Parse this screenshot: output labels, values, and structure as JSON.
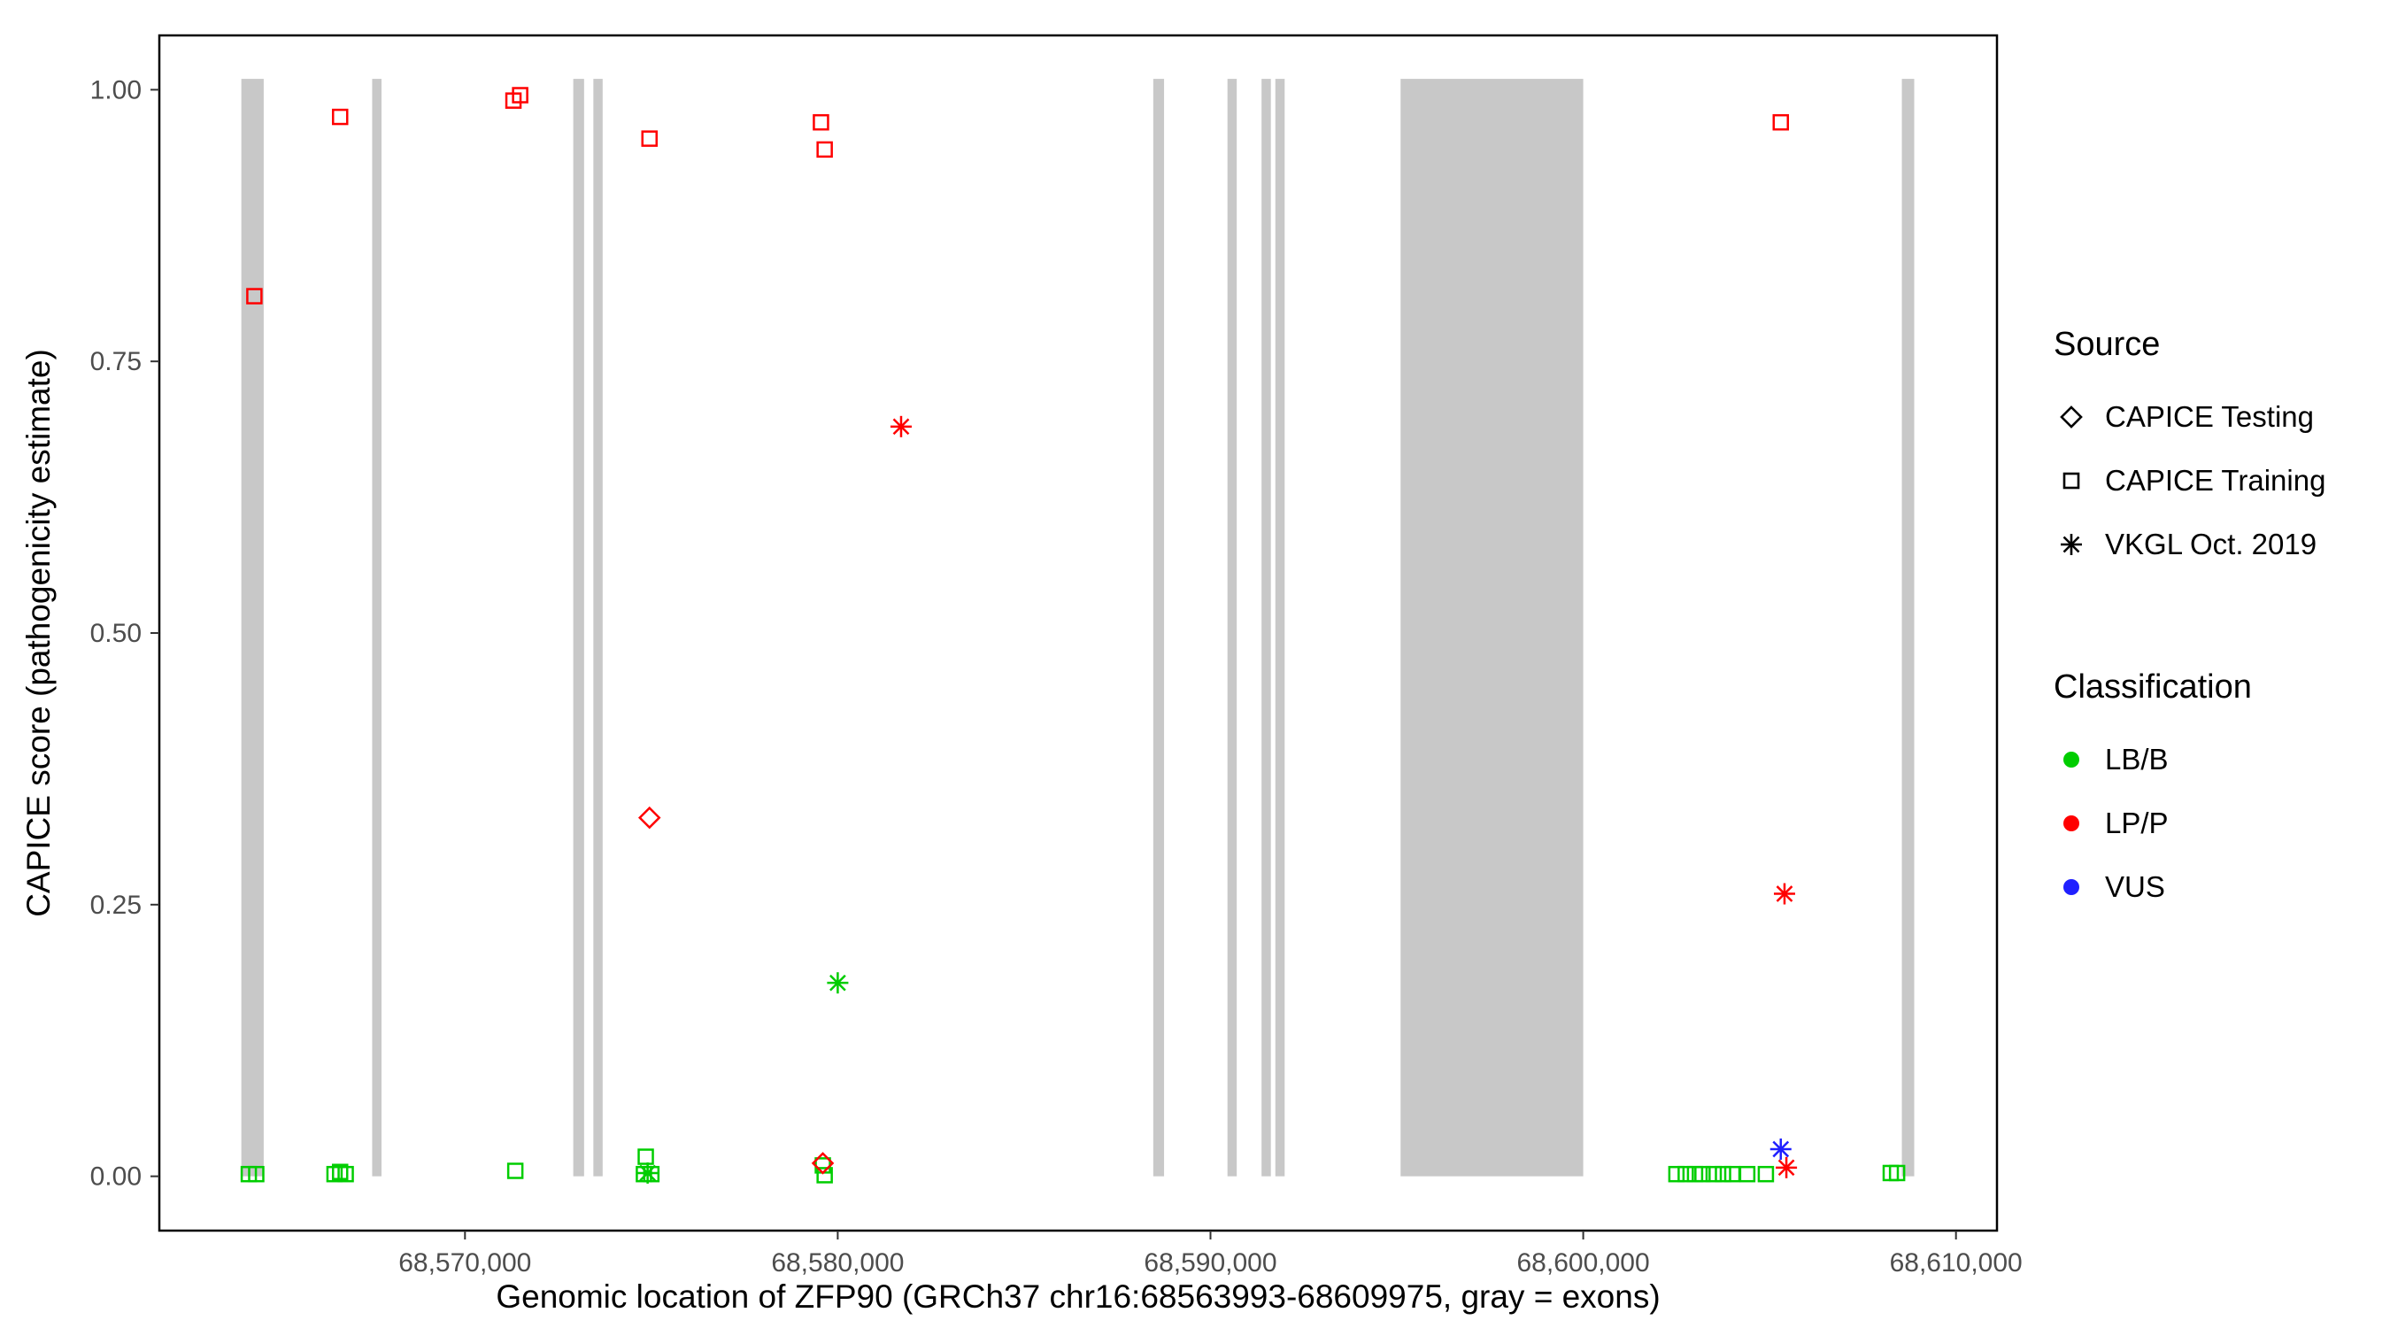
{
  "figure": {
    "background": "#ffffff"
  },
  "axes": {
    "y_label": "CAPICE score (pathogenicity estimate)",
    "x_label": "Genomic location of ZFP90 (GRCh37 chr16:68563993-68609975, gray = exons)"
  },
  "legend": {
    "source": {
      "title": "Source",
      "items": [
        {
          "label": "CAPICE Testing",
          "shape": "diamond"
        },
        {
          "label": "CAPICE Training",
          "shape": "square"
        },
        {
          "label": "VKGL Oct. 2019",
          "shape": "asterisk"
        }
      ]
    },
    "classification": {
      "title": "Classification",
      "items": [
        {
          "label": "LB/B",
          "color": "#00CD00"
        },
        {
          "label": "LP/P",
          "color": "#FF0000"
        },
        {
          "label": "VUS",
          "color": "#2020FF"
        }
      ]
    }
  },
  "chart_data": {
    "type": "scatter",
    "title": "",
    "xlabel": "Genomic location of ZFP90 (GRCh37 chr16:68563993-68609975, gray = exons)",
    "ylabel": "CAPICE score (pathogenicity estimate)",
    "xlim": [
      68561800,
      68611100
    ],
    "ylim": [
      -0.05,
      1.05
    ],
    "grid": false,
    "legend_position": "right",
    "x_ticks": [
      {
        "value": 68570000,
        "label": "68,570,000"
      },
      {
        "value": 68580000,
        "label": "68,580,000"
      },
      {
        "value": 68590000,
        "label": "68,590,000"
      },
      {
        "value": 68600000,
        "label": "68,600,000"
      },
      {
        "value": 68610000,
        "label": "68,610,000"
      }
    ],
    "y_ticks": [
      {
        "value": 0.0,
        "label": "0.00"
      },
      {
        "value": 0.25,
        "label": "0.25"
      },
      {
        "value": 0.5,
        "label": "0.50"
      },
      {
        "value": 0.75,
        "label": "0.75"
      },
      {
        "value": 1.0,
        "label": "1.00"
      }
    ],
    "exon_color": "#C8C8C8",
    "exon_yspan": [
      0,
      1.01
    ],
    "exons": [
      [
        68564000,
        68564600
      ],
      [
        68567510,
        68567760
      ],
      [
        68572905,
        68573195
      ],
      [
        68573444,
        68573693
      ],
      [
        68588465,
        68588755
      ],
      [
        68590456,
        68590705
      ],
      [
        68591370,
        68591620
      ],
      [
        68591740,
        68591990
      ],
      [
        68595100,
        68600000
      ],
      [
        68608548,
        68608880
      ]
    ],
    "shape_map": {
      "CAPICE Testing": "diamond",
      "CAPICE Training": "square",
      "VKGL Oct. 2019": "asterisk"
    },
    "color_map": {
      "LB/B": "#00CD00",
      "LP/P": "#FF0000",
      "VUS": "#2020FF"
    },
    "points": [
      {
        "x": 68564350,
        "y": 0.81,
        "source": "CAPICE Training",
        "classification": "LP/P"
      },
      {
        "x": 68566650,
        "y": 0.975,
        "source": "CAPICE Training",
        "classification": "LP/P"
      },
      {
        "x": 68571300,
        "y": 0.99,
        "source": "CAPICE Training",
        "classification": "LP/P"
      },
      {
        "x": 68571480,
        "y": 0.995,
        "source": "CAPICE Training",
        "classification": "LP/P"
      },
      {
        "x": 68574950,
        "y": 0.955,
        "source": "CAPICE Training",
        "classification": "LP/P"
      },
      {
        "x": 68579550,
        "y": 0.97,
        "source": "CAPICE Training",
        "classification": "LP/P"
      },
      {
        "x": 68579650,
        "y": 0.945,
        "source": "CAPICE Training",
        "classification": "LP/P"
      },
      {
        "x": 68605300,
        "y": 0.97,
        "source": "CAPICE Training",
        "classification": "LP/P"
      },
      {
        "x": 68574950,
        "y": 0.33,
        "source": "CAPICE Testing",
        "classification": "LP/P"
      },
      {
        "x": 68579600,
        "y": 0.012,
        "source": "CAPICE Testing",
        "classification": "LP/P"
      },
      {
        "x": 68581700,
        "y": 0.69,
        "source": "VKGL Oct. 2019",
        "classification": "LP/P"
      },
      {
        "x": 68605400,
        "y": 0.26,
        "source": "VKGL Oct. 2019",
        "classification": "LP/P"
      },
      {
        "x": 68605450,
        "y": 0.008,
        "source": "VKGL Oct. 2019",
        "classification": "LP/P"
      },
      {
        "x": 68605300,
        "y": 0.025,
        "source": "VKGL Oct. 2019",
        "classification": "VUS"
      },
      {
        "x": 68580000,
        "y": 0.178,
        "source": "VKGL Oct. 2019",
        "classification": "LB/B"
      },
      {
        "x": 68574900,
        "y": 0.003,
        "source": "VKGL Oct. 2019",
        "classification": "LB/B"
      },
      {
        "x": 68564200,
        "y": 0.002,
        "source": "CAPICE Training",
        "classification": "LB/B"
      },
      {
        "x": 68564400,
        "y": 0.002,
        "source": "CAPICE Training",
        "classification": "LB/B"
      },
      {
        "x": 68566500,
        "y": 0.002,
        "source": "CAPICE Training",
        "classification": "LB/B"
      },
      {
        "x": 68566650,
        "y": 0.004,
        "source": "CAPICE Training",
        "classification": "LB/B"
      },
      {
        "x": 68566800,
        "y": 0.002,
        "source": "CAPICE Training",
        "classification": "LB/B"
      },
      {
        "x": 68571350,
        "y": 0.005,
        "source": "CAPICE Training",
        "classification": "LB/B"
      },
      {
        "x": 68574850,
        "y": 0.018,
        "source": "CAPICE Training",
        "classification": "LB/B"
      },
      {
        "x": 68574800,
        "y": 0.002,
        "source": "CAPICE Training",
        "classification": "LB/B"
      },
      {
        "x": 68575000,
        "y": 0.002,
        "source": "CAPICE Training",
        "classification": "LB/B"
      },
      {
        "x": 68579600,
        "y": 0.01,
        "source": "CAPICE Training",
        "classification": "LB/B"
      },
      {
        "x": 68579650,
        "y": 0.001,
        "source": "CAPICE Training",
        "classification": "LB/B"
      },
      {
        "x": 68602500,
        "y": 0.002,
        "source": "CAPICE Training",
        "classification": "LB/B"
      },
      {
        "x": 68602750,
        "y": 0.002,
        "source": "CAPICE Training",
        "classification": "LB/B"
      },
      {
        "x": 68603000,
        "y": 0.002,
        "source": "CAPICE Training",
        "classification": "LB/B"
      },
      {
        "x": 68603200,
        "y": 0.002,
        "source": "CAPICE Training",
        "classification": "LB/B"
      },
      {
        "x": 68603500,
        "y": 0.002,
        "source": "CAPICE Training",
        "classification": "LB/B"
      },
      {
        "x": 68603750,
        "y": 0.002,
        "source": "CAPICE Training",
        "classification": "LB/B"
      },
      {
        "x": 68604000,
        "y": 0.002,
        "source": "CAPICE Training",
        "classification": "LB/B"
      },
      {
        "x": 68604400,
        "y": 0.002,
        "source": "CAPICE Training",
        "classification": "LB/B"
      },
      {
        "x": 68604900,
        "y": 0.002,
        "source": "CAPICE Training",
        "classification": "LB/B"
      },
      {
        "x": 68608250,
        "y": 0.003,
        "source": "CAPICE Training",
        "classification": "LB/B"
      },
      {
        "x": 68608420,
        "y": 0.003,
        "source": "CAPICE Training",
        "classification": "LB/B"
      }
    ]
  }
}
